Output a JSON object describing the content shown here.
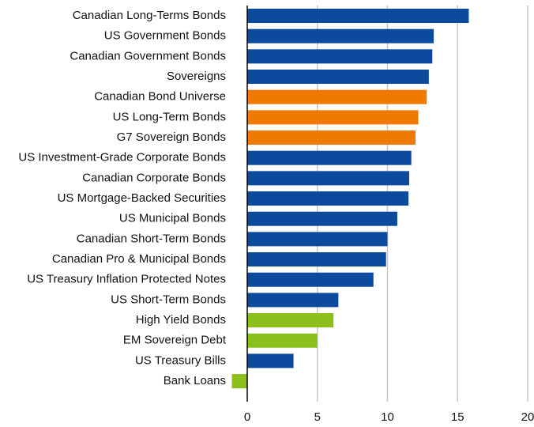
{
  "chart_data": {
    "type": "hbar",
    "categories": [
      "Canadian Long-Terms Bonds",
      "US Government Bonds",
      "Canadian Government Bonds",
      "Sovereigns",
      "Canadian Bond Universe",
      "US Long-Term Bonds",
      "G7 Sovereign Bonds",
      "US Investment-Grade Corporate Bonds",
      "Canadian Corporate Bonds",
      "US Mortgage-Backed Securities",
      "US Municipal Bonds",
      "Canadian Short-Term Bonds",
      "Canadian Pro & Municipal Bonds",
      "US Treasury Inflation Protected Notes",
      "US Short-Term Bonds",
      "High Yield Bonds",
      "EM Sovereign Debt",
      "US Treasury Bills",
      "Bank Loans"
    ],
    "values": [
      15.8,
      13.3,
      13.2,
      12.95,
      12.8,
      12.2,
      12.0,
      11.7,
      11.55,
      11.5,
      10.7,
      10.0,
      9.9,
      9.0,
      6.5,
      6.15,
      5.0,
      3.3,
      -1.1
    ],
    "colors": [
      "#0b4a9c",
      "#0b4a9c",
      "#0b4a9c",
      "#0b4a9c",
      "#f07a00",
      "#f07a00",
      "#f07a00",
      "#0b4a9c",
      "#0b4a9c",
      "#0b4a9c",
      "#0b4a9c",
      "#0b4a9c",
      "#0b4a9c",
      "#0b4a9c",
      "#0b4a9c",
      "#8cbf1a",
      "#8cbf1a",
      "#0b4a9c",
      "#8cbf1a"
    ],
    "xlim": [
      -1.2,
      20
    ],
    "xticks": [
      0,
      5,
      10,
      15,
      20
    ],
    "grid": true
  }
}
